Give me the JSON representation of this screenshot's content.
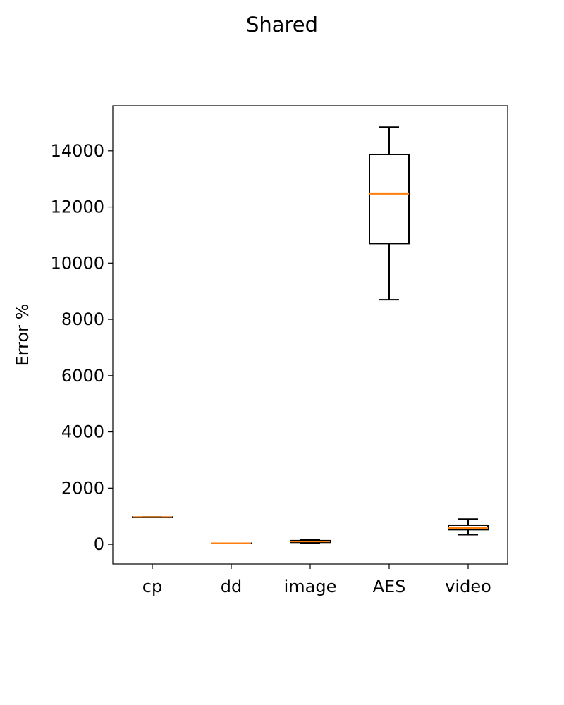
{
  "chart_data": {
    "type": "box",
    "title": "Shared",
    "xlabel": "",
    "ylabel": "Error %",
    "ylim": [
      -700,
      15600
    ],
    "yticks": [
      0,
      2000,
      4000,
      6000,
      8000,
      10000,
      12000,
      14000
    ],
    "ytick_labels": [
      "0",
      "2000",
      "4000",
      "6000",
      "8000",
      "10000",
      "12000",
      "14000"
    ],
    "categories": [
      "cp",
      "dd",
      "image",
      "AES",
      "video"
    ],
    "boxes": [
      {
        "name": "cp",
        "whisker_low": 970,
        "q1": 970,
        "median": 970,
        "q3": 970,
        "whisker_high": 970
      },
      {
        "name": "dd",
        "whisker_low": 40,
        "q1": 40,
        "median": 40,
        "q3": 40,
        "whisker_high": 40
      },
      {
        "name": "image",
        "whisker_low": 40,
        "q1": 70,
        "median": 100,
        "q3": 130,
        "whisker_high": 160
      },
      {
        "name": "AES",
        "whisker_low": 8700,
        "q1": 10700,
        "median": 12470,
        "q3": 13870,
        "whisker_high": 14840
      },
      {
        "name": "video",
        "whisker_low": 340,
        "q1": 520,
        "median": 580,
        "q3": 680,
        "whisker_high": 900
      }
    ],
    "colors": {
      "box": "#000000",
      "median": "#ff7f0e"
    },
    "grid": false,
    "legend": "none"
  }
}
